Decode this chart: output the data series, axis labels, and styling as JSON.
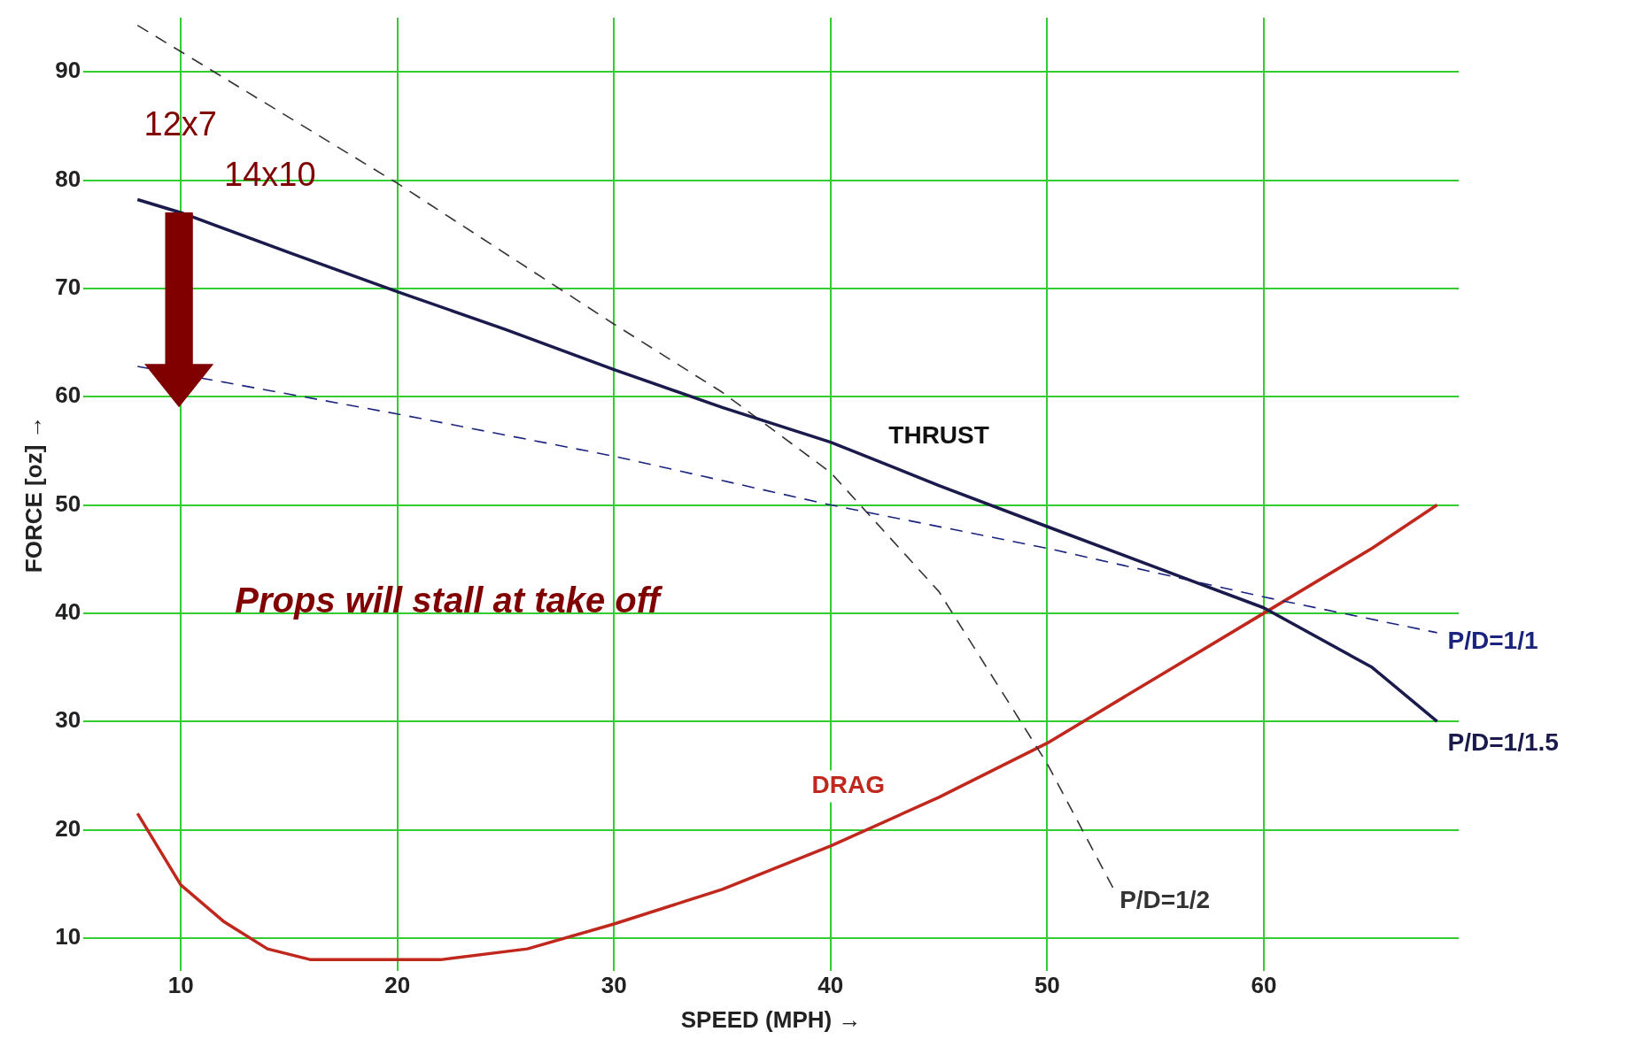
{
  "chart_data": {
    "type": "line",
    "xlabel": "SPEED (MPH) →",
    "ylabel": "FORCE [oz] →",
    "xlim": [
      5.5,
      69
    ],
    "ylim": [
      7,
      95
    ],
    "xticks": [
      10,
      20,
      30,
      40,
      50,
      60
    ],
    "yticks": [
      10,
      20,
      30,
      40,
      50,
      60,
      70,
      80,
      90
    ],
    "grid": true,
    "legend": false,
    "marker": "none",
    "series": [
      {
        "name": "P/D=1/1.5",
        "color": "#1a1a4d",
        "line_style": "solid",
        "x": [
          8,
          10,
          15,
          20,
          25,
          30,
          35,
          40,
          45,
          50,
          56,
          60,
          65,
          68
        ],
        "values": [
          78.2,
          77,
          73.3,
          69.7,
          66.2,
          62.5,
          59,
          55.8,
          51.8,
          48,
          43.5,
          40.5,
          35,
          30
        ]
      },
      {
        "name": "P/D=1/1",
        "color": "#1a237e",
        "line_style": "dashed",
        "x": [
          8,
          20,
          30,
          40,
          50,
          60,
          68
        ],
        "values": [
          62.8,
          58.4,
          54.5,
          50,
          46,
          41.5,
          38.2
        ]
      },
      {
        "name": "P/D=1/2",
        "color": "#333333",
        "line_style": "dashed",
        "x": [
          8,
          20,
          30,
          35,
          40,
          45,
          50,
          53.1
        ],
        "values": [
          94.3,
          79.7,
          66.7,
          60.4,
          53,
          42,
          26.1,
          14.4
        ]
      },
      {
        "name": "DRAG",
        "color": "#c0281e",
        "line_style": "solid",
        "x": [
          8,
          10,
          12,
          14,
          16,
          22,
          26,
          30,
          35,
          40,
          45,
          50,
          55,
          60,
          65,
          68
        ],
        "values": [
          21.5,
          14.9,
          11.5,
          9,
          8,
          8,
          9,
          11.3,
          14.5,
          18.5,
          23,
          28,
          34,
          40,
          46,
          50
        ]
      }
    ],
    "annotations": [
      "THRUST",
      "12x7",
      "14x10",
      "Props will stall at take off"
    ]
  }
}
